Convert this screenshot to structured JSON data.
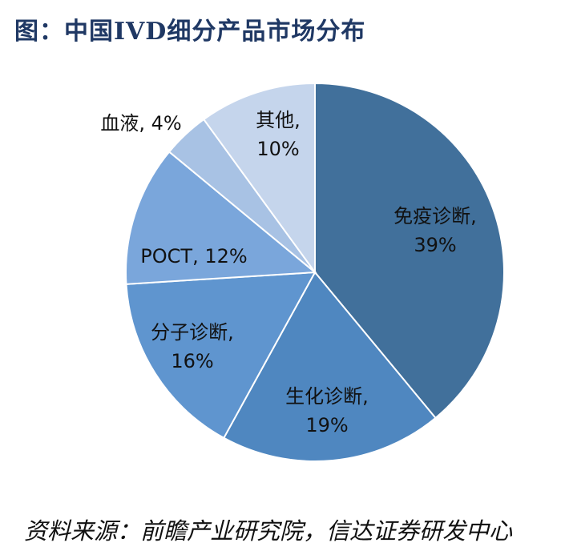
{
  "header": {
    "title": "图：中国IVD细分产品市场分布"
  },
  "chart_data": {
    "type": "pie",
    "title": "图：中国IVD细分产品市场分布",
    "start": "12 o'clock, clockwise",
    "slices": [
      {
        "label": "免疫诊断",
        "value": 39,
        "color": "#41709b",
        "text_color": "#111111",
        "lines": [
          "免疫诊断,",
          "39%"
        ]
      },
      {
        "label": "生化诊断",
        "value": 19,
        "color": "#4f87c0",
        "text_color": "#111111",
        "lines": [
          "生化诊断,",
          "19%"
        ]
      },
      {
        "label": "分子诊断",
        "value": 16,
        "color": "#5f95cf",
        "text_color": "#111111",
        "lines": [
          "分子诊断,",
          "16%"
        ]
      },
      {
        "label": "POCT",
        "value": 12,
        "color": "#7aa6db",
        "text_color": "#111111",
        "lines": [
          "POCT, 12%"
        ]
      },
      {
        "label": "血液",
        "value": 4,
        "color": "#a8c2e4",
        "text_color": "#111111",
        "lines": [
          "血液, 4%"
        ]
      },
      {
        "label": "其他",
        "value": 10,
        "color": "#c5d5ec",
        "text_color": "#111111",
        "lines": [
          "其他,",
          "10%"
        ]
      }
    ]
  },
  "footer": {
    "source": "资料来源：前瞻产业研究院，信达证券研发中心"
  }
}
